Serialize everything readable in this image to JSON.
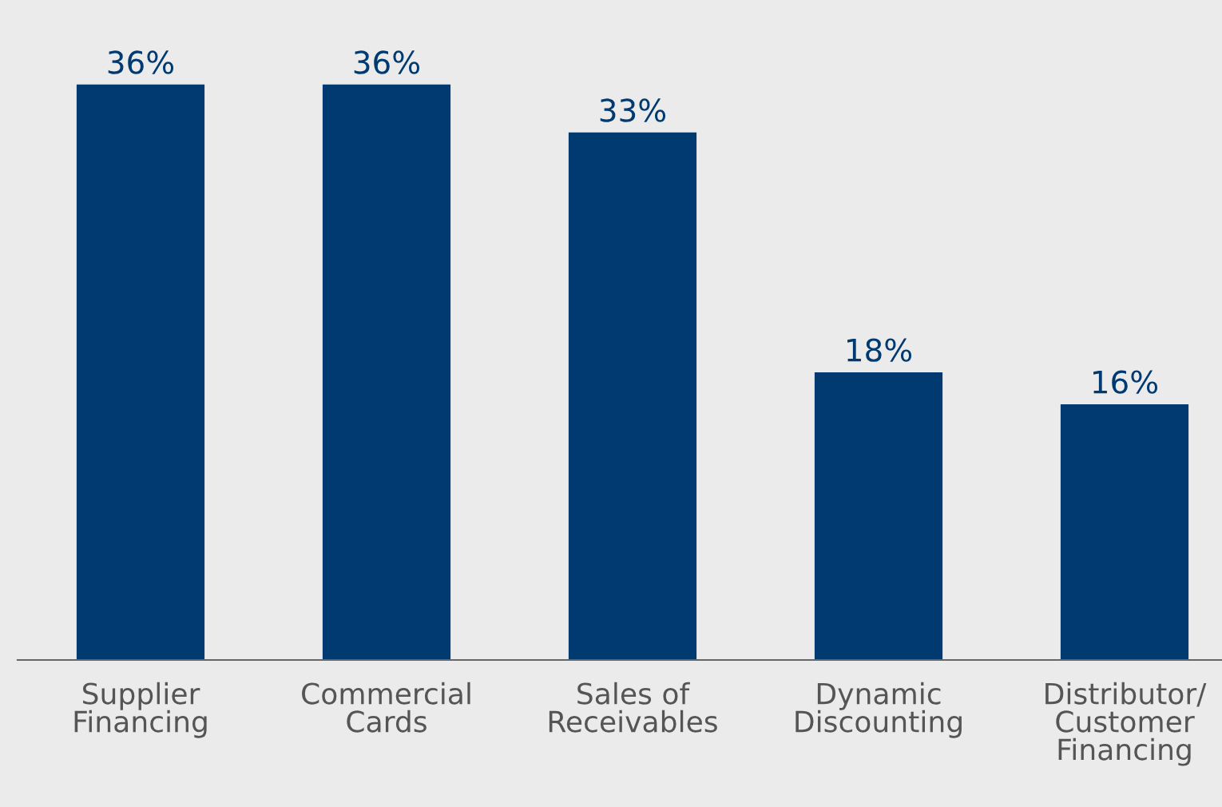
{
  "chart_data": {
    "type": "bar",
    "categories": [
      "Supplier\nFinancing",
      "Commercial\nCards",
      "Sales of\nReceivables",
      "Dynamic\nDiscounting",
      "Distributor/\nCustomer\nFinancing"
    ],
    "values": [
      36,
      36,
      33,
      18,
      16
    ],
    "value_labels": [
      "36%",
      "36%",
      "33%",
      "18%",
      "16%"
    ],
    "color": "#003a70",
    "grid": false,
    "legend": false
  }
}
